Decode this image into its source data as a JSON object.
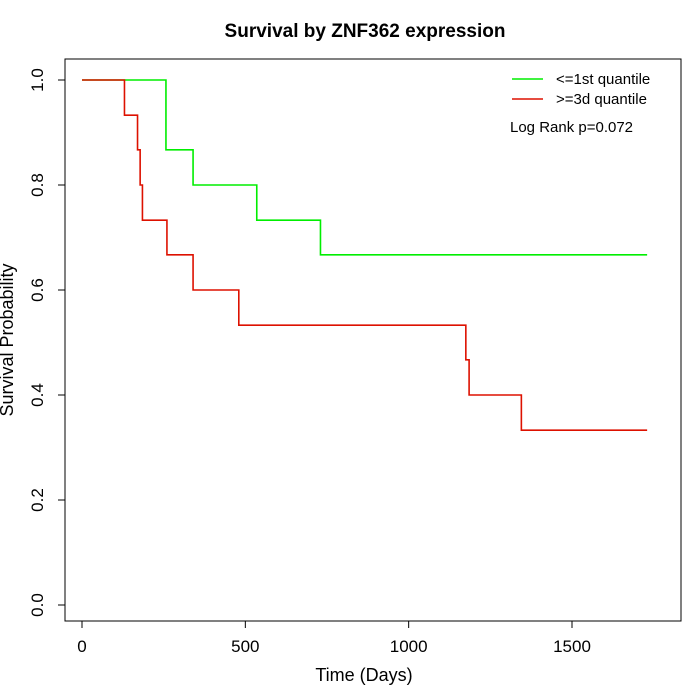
{
  "chart_data": {
    "type": "line",
    "title": "Survival by ZNF362 expression",
    "xlabel": "Time (Days)",
    "ylabel": "Survival Probability",
    "xlim": [
      0,
      1750
    ],
    "ylim": [
      0,
      1
    ],
    "xticks": [
      0,
      500,
      1000,
      1500
    ],
    "yticks": [
      0.0,
      0.2,
      0.4,
      0.6,
      0.8,
      1.0
    ],
    "xtick_labels": [
      "0",
      "500",
      "1000",
      "1500"
    ],
    "ytick_labels": [
      "0.0",
      "0.2",
      "0.4",
      "0.6",
      "0.8",
      "1.0"
    ],
    "grid": false,
    "legend_position": "top-right",
    "annotation": "Log Rank p=0.072",
    "series": [
      {
        "name": "<=1st quantile",
        "color": "#00ee00",
        "step": true,
        "x": [
          0,
          255,
          257,
          340,
          535,
          730,
          1730
        ],
        "y": [
          1.0,
          1.0,
          0.867,
          0.8,
          0.733,
          0.667,
          0.667
        ]
      },
      {
        "name": ">=3d quantile",
        "color": "#dd1100",
        "step": true,
        "x": [
          0,
          130,
          170,
          178,
          185,
          260,
          340,
          480,
          1175,
          1185,
          1345,
          1730
        ],
        "y": [
          1.0,
          0.933,
          0.867,
          0.8,
          0.733,
          0.667,
          0.6,
          0.533,
          0.467,
          0.4,
          0.333,
          0.333
        ]
      }
    ]
  }
}
